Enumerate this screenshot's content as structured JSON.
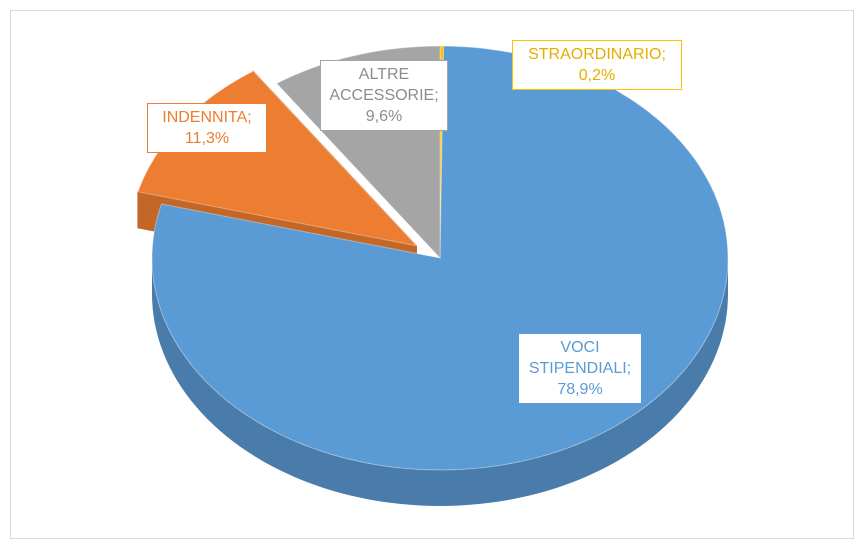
{
  "chart_data": {
    "type": "pie",
    "categories": [
      "STRAORDINARIO",
      "VOCI STIPENDIALI",
      "INDENNITA",
      "ALTRE ACCESSORIE"
    ],
    "values": [
      0.2,
      78.9,
      11.3,
      9.6
    ],
    "value_labels": [
      "0,2%",
      "78,9%",
      "11,3%",
      "9,6%"
    ],
    "label_separator": ";",
    "colors": [
      "#ffc000",
      "#5b9bd5",
      "#ed7d31",
      "#a5a5a5"
    ],
    "explode": [
      0,
      0,
      0.1,
      0
    ]
  }
}
